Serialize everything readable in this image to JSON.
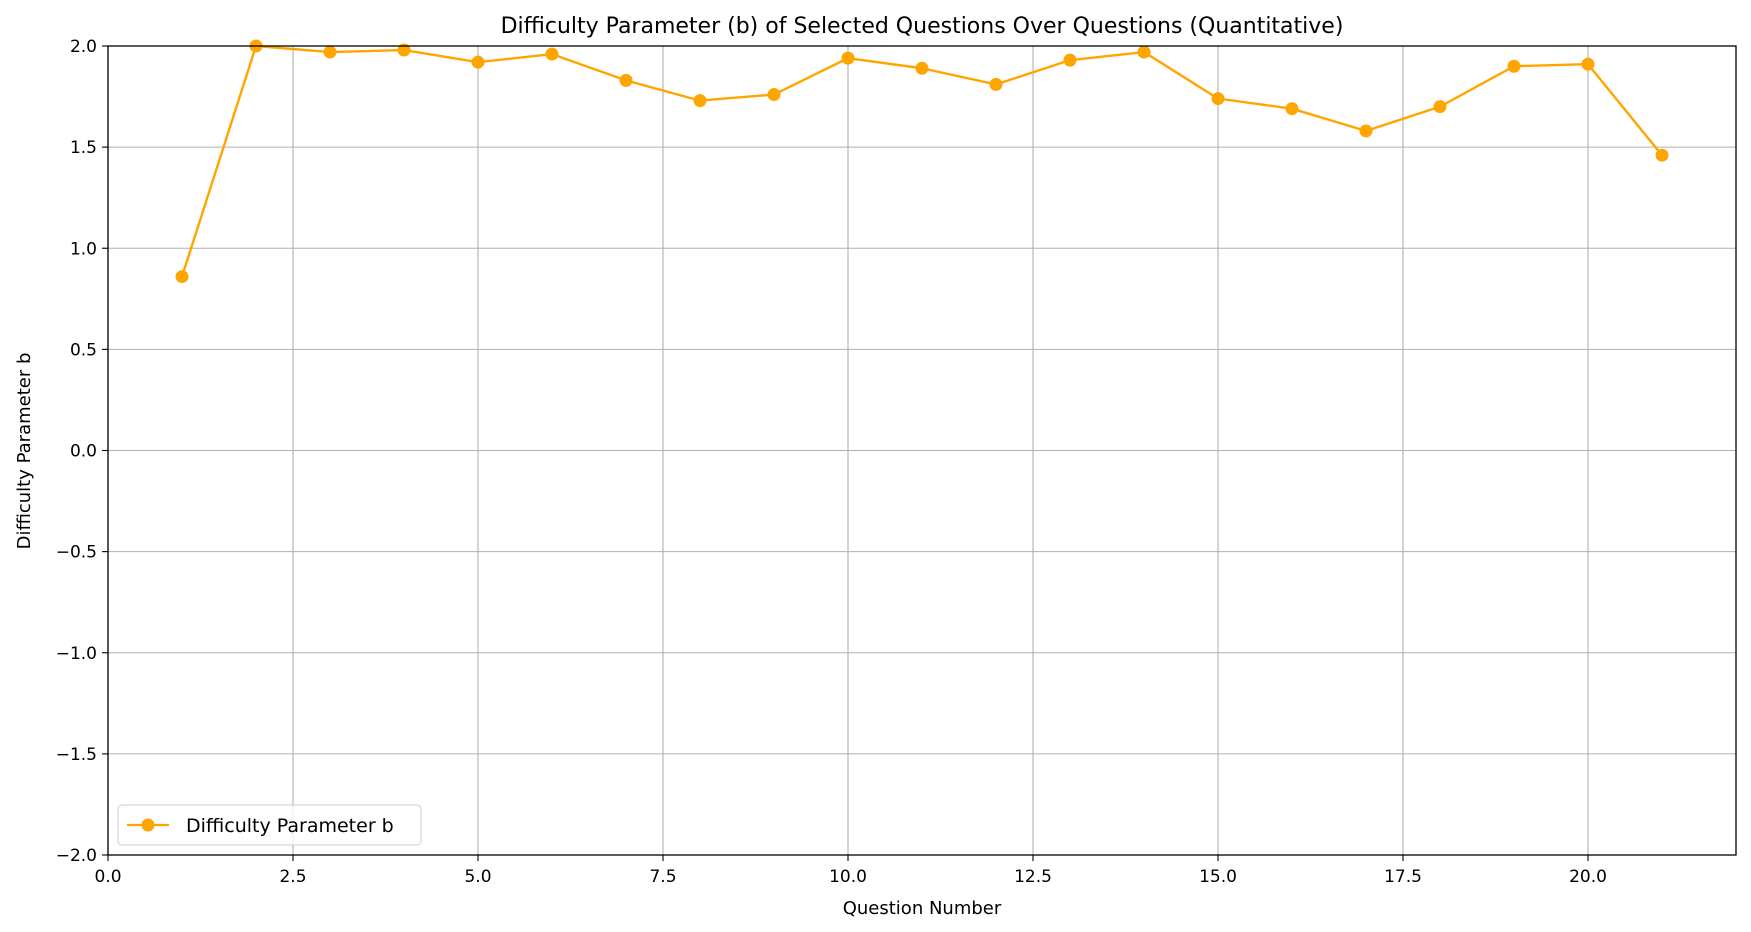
{
  "chart_data": {
    "type": "line",
    "title": "Difficulty Parameter (b) of Selected Questions Over Questions (Quantitative)",
    "xlabel": "Question Number",
    "ylabel": "Difficulty Parameter b",
    "xlim": [
      0,
      22
    ],
    "ylim": [
      -2,
      2
    ],
    "xticks": [
      0,
      2.5,
      5,
      7.5,
      10,
      12.5,
      15,
      17.5,
      20
    ],
    "xtick_labels": [
      "0.0",
      "2.5",
      "5.0",
      "7.5",
      "10.0",
      "12.5",
      "15.0",
      "17.5",
      "20.0"
    ],
    "yticks": [
      -2,
      -1.5,
      -1,
      -0.5,
      0,
      0.5,
      1,
      1.5,
      2
    ],
    "ytick_labels": [
      "−2.0",
      "−1.5",
      "−1.0",
      "−0.5",
      "0.0",
      "0.5",
      "1.0",
      "1.5",
      "2.0"
    ],
    "grid": true,
    "legend_position": "lower-left",
    "series": [
      {
        "name": "Difficulty Parameter b",
        "color": "#FFA500",
        "marker": "circle",
        "x": [
          1,
          2,
          3,
          4,
          5,
          6,
          7,
          8,
          9,
          10,
          11,
          12,
          13,
          14,
          15,
          16,
          17,
          18,
          19,
          20,
          21
        ],
        "y": [
          0.86,
          2.0,
          1.97,
          1.98,
          1.92,
          1.96,
          1.83,
          1.73,
          1.76,
          1.94,
          1.89,
          1.81,
          1.93,
          1.97,
          1.74,
          1.69,
          1.58,
          1.7,
          1.9,
          1.91,
          1.46
        ]
      }
    ]
  }
}
